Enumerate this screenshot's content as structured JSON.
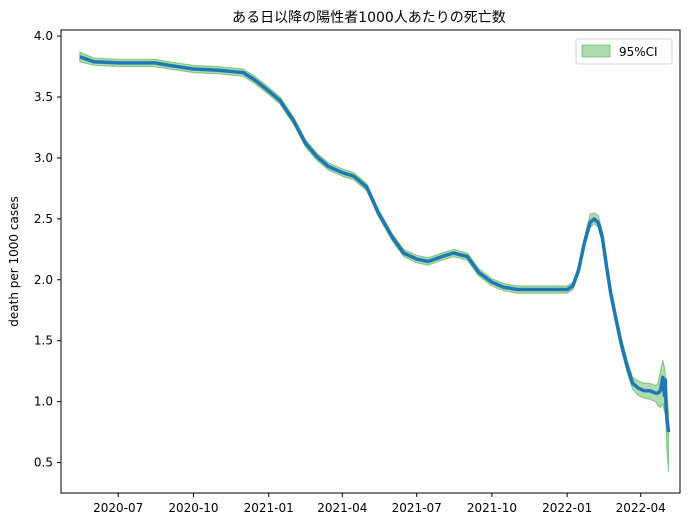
{
  "chart_data": {
    "type": "line",
    "title": "ある日以降の陽性者1000人あたりの死亡数",
    "xlabel": "",
    "ylabel": "death per 1000 cases",
    "x_ticks": [
      "2020-07",
      "2020-10",
      "2021-01",
      "2021-04",
      "2021-07",
      "2021-10",
      "2022-01",
      "2022-04"
    ],
    "y_ticks": [
      "0.5",
      "1.0",
      "1.5",
      "2.0",
      "2.5",
      "3.0",
      "3.5",
      "4.0"
    ],
    "xlim": [
      "2020-04-22",
      "2022-05-19"
    ],
    "ylim": [
      0.25,
      4.05
    ],
    "grid": false,
    "legend_position": "top-right",
    "line_color": "#1f77b4",
    "band_color": "#2ca02c",
    "series": [
      {
        "x": [
          "2020-05-15",
          "2020-06-01",
          "2020-07-01",
          "2020-08-01",
          "2020-08-15",
          "2020-09-01",
          "2020-10-01",
          "2020-11-01",
          "2020-12-01",
          "2020-12-15",
          "2021-01-01",
          "2021-01-15",
          "2021-02-01",
          "2021-02-15",
          "2021-03-01",
          "2021-03-15",
          "2021-04-01",
          "2021-04-15",
          "2021-05-01",
          "2021-05-15",
          "2021-06-01",
          "2021-06-15",
          "2021-07-01",
          "2021-07-15",
          "2021-08-01",
          "2021-08-15",
          "2021-09-01",
          "2021-09-15",
          "2021-10-01",
          "2021-10-15",
          "2021-11-01",
          "2021-12-01",
          "2021-12-15",
          "2022-01-01",
          "2022-01-08",
          "2022-01-15",
          "2022-01-22",
          "2022-01-29",
          "2022-02-03",
          "2022-02-08",
          "2022-02-13",
          "2022-02-18",
          "2022-02-23",
          "2022-03-01",
          "2022-03-08",
          "2022-03-15",
          "2022-03-22",
          "2022-03-29",
          "2022-04-05",
          "2022-04-12",
          "2022-04-19",
          "2022-04-22",
          "2022-04-25",
          "2022-04-28",
          "2022-04-30",
          "2022-05-01",
          "2022-05-02",
          "2022-05-03",
          "2022-05-05"
        ],
        "values": [
          3.83,
          3.79,
          3.78,
          3.78,
          3.78,
          3.76,
          3.73,
          3.72,
          3.7,
          3.64,
          3.55,
          3.47,
          3.3,
          3.12,
          3.01,
          2.93,
          2.88,
          2.85,
          2.76,
          2.55,
          2.35,
          2.22,
          2.17,
          2.15,
          2.19,
          2.22,
          2.19,
          2.06,
          1.98,
          1.94,
          1.92,
          1.92,
          1.92,
          1.92,
          1.95,
          2.08,
          2.3,
          2.47,
          2.5,
          2.47,
          2.35,
          2.12,
          1.9,
          1.7,
          1.48,
          1.3,
          1.15,
          1.11,
          1.09,
          1.09,
          1.07,
          1.07,
          1.09,
          1.2,
          1.05,
          1.18,
          0.95,
          0.86,
          0.75
        ],
        "ci_upper": [
          3.87,
          3.82,
          3.81,
          3.81,
          3.81,
          3.79,
          3.76,
          3.75,
          3.73,
          3.67,
          3.58,
          3.5,
          3.33,
          3.15,
          3.04,
          2.96,
          2.91,
          2.88,
          2.79,
          2.58,
          2.38,
          2.25,
          2.2,
          2.18,
          2.22,
          2.25,
          2.22,
          2.09,
          2.01,
          1.97,
          1.95,
          1.95,
          1.95,
          1.95,
          1.98,
          2.11,
          2.34,
          2.54,
          2.55,
          2.53,
          2.4,
          2.17,
          1.95,
          1.75,
          1.53,
          1.35,
          1.2,
          1.17,
          1.15,
          1.15,
          1.13,
          1.15,
          1.25,
          1.34,
          1.28,
          1.22,
          1.18,
          1.08,
          0.9
        ],
        "ci_lower": [
          3.79,
          3.76,
          3.75,
          3.75,
          3.75,
          3.73,
          3.7,
          3.69,
          3.67,
          3.61,
          3.52,
          3.44,
          3.27,
          3.09,
          2.98,
          2.9,
          2.85,
          2.82,
          2.73,
          2.52,
          2.32,
          2.19,
          2.14,
          2.12,
          2.16,
          2.19,
          2.16,
          2.03,
          1.95,
          1.91,
          1.89,
          1.89,
          1.89,
          1.89,
          1.92,
          2.05,
          2.26,
          2.43,
          2.46,
          2.43,
          2.3,
          2.07,
          1.85,
          1.65,
          1.43,
          1.25,
          1.1,
          1.05,
          1.03,
          1.02,
          1.0,
          0.97,
          0.95,
          0.98,
          0.92,
          0.9,
          0.8,
          0.6,
          0.42
        ]
      }
    ],
    "legend": [
      {
        "label": "95%CI"
      }
    ]
  }
}
